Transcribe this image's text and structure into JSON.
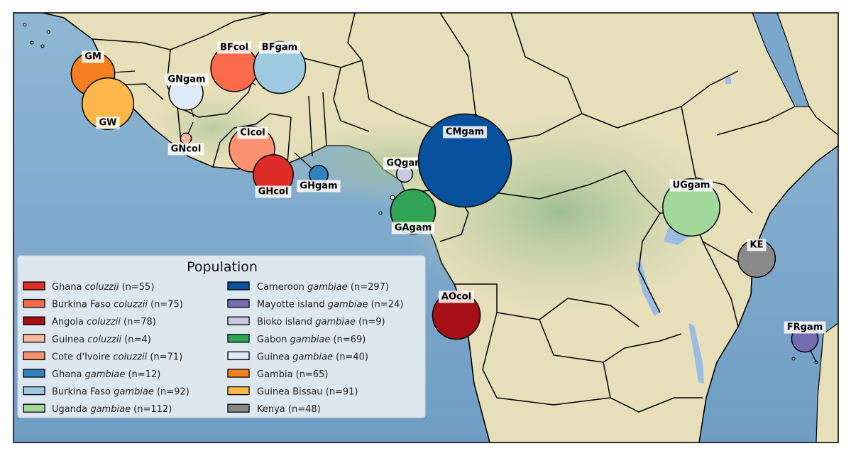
{
  "legend": {
    "title": "Population",
    "items": [
      {
        "label": "Ghana ",
        "species": "coluzzii",
        "count": " (n=55)",
        "color": "#de2d26"
      },
      {
        "label": "Burkina Faso ",
        "species": "coluzzii",
        "count": " (n=75)",
        "color": "#fb6a4a"
      },
      {
        "label": "Angola ",
        "species": "coluzzii",
        "count": " (n=78)",
        "color": "#a50f15"
      },
      {
        "label": "Guinea ",
        "species": "coluzzii",
        "count": " (n=4)",
        "color": "#fcbba1"
      },
      {
        "label": "Cote d'Ivoire ",
        "species": "coluzzii",
        "count": " (n=71)",
        "color": "#fc9272"
      },
      {
        "label": "Ghana ",
        "species": "gambiae",
        "count": " (n=12)",
        "color": "#3182bd"
      },
      {
        "label": "Burkina Faso ",
        "species": "gambiae",
        "count": " (n=92)",
        "color": "#9ecae1"
      },
      {
        "label": "Uganda ",
        "species": "gambiae",
        "count": " (n=112)",
        "color": "#a1d99b"
      },
      {
        "label": "Cameroon ",
        "species": "gambiae",
        "count": " (n=297)",
        "color": "#08519c"
      },
      {
        "label": "Mayotte island ",
        "species": "gambiae",
        "count": " (n=24)",
        "color": "#756bb1"
      },
      {
        "label": "Bioko island ",
        "species": "gambiae",
        "count": " (n=9)",
        "color": "#cbc9e2"
      },
      {
        "label": "Gabon ",
        "species": "gambiae",
        "count": " (n=69)",
        "color": "#31a354"
      },
      {
        "label": "Guinea ",
        "species": "gambiae",
        "count": " (n=40)",
        "color": "#deebf7"
      },
      {
        "label": "Gambia",
        "species": "",
        "count": " (n=65)",
        "color": "#f47f1e"
      },
      {
        "label": "Guinea Bissau",
        "species": "",
        "count": " (n=91)",
        "color": "#feb74a"
      },
      {
        "label": "Kenya",
        "species": "",
        "count": " (n=48)",
        "color": "#8a8a8a"
      }
    ]
  },
  "markers": [
    {
      "code": "GM",
      "n": 65,
      "color": "#f47f1e"
    },
    {
      "code": "GW",
      "n": 91,
      "color": "#feb74a"
    },
    {
      "code": "GNgam",
      "n": 40,
      "color": "#deebf7"
    },
    {
      "code": "GNcol",
      "n": 4,
      "color": "#fcbba1"
    },
    {
      "code": "BFcol",
      "n": 75,
      "color": "#fb6a4a"
    },
    {
      "code": "BFgam",
      "n": 92,
      "color": "#9ecae1"
    },
    {
      "code": "CIcol",
      "n": 71,
      "color": "#fc9272"
    },
    {
      "code": "GHcol",
      "n": 55,
      "color": "#de2d26"
    },
    {
      "code": "GHgam",
      "n": 12,
      "color": "#3182bd"
    },
    {
      "code": "GQgam",
      "n": 9,
      "color": "#cbc9e2"
    },
    {
      "code": "CMgam",
      "n": 297,
      "color": "#08519c"
    },
    {
      "code": "GAgam",
      "n": 69,
      "color": "#31a354"
    },
    {
      "code": "UGgam",
      "n": 112,
      "color": "#a1d99b"
    },
    {
      "code": "KE",
      "n": 48,
      "color": "#8a8a8a"
    },
    {
      "code": "AOcol",
      "n": 78,
      "color": "#a50f15"
    },
    {
      "code": "FRgam",
      "n": 24,
      "color": "#756bb1"
    }
  ]
}
